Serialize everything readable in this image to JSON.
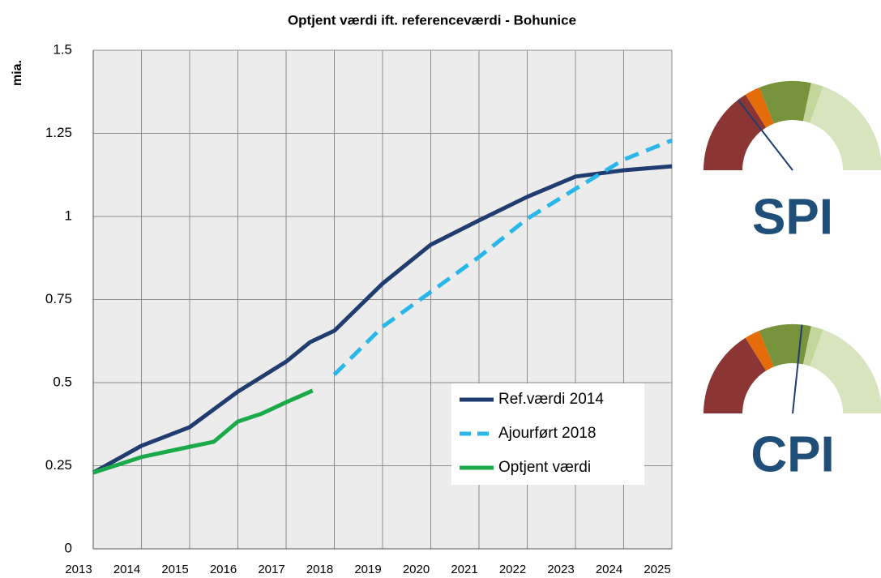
{
  "chart_data": {
    "type": "line",
    "title": "Optjent værdi ift. referenceværdi - Bohunice",
    "ylabel": "mia.",
    "xlim": [
      2013,
      2025
    ],
    "xticks": [
      2013,
      2014,
      2015,
      2016,
      2017,
      2018,
      2019,
      2020,
      2021,
      2022,
      2023,
      2024,
      2025
    ],
    "ylim": [
      0,
      1.5
    ],
    "yticks": [
      0,
      0.25,
      0.5,
      0.75,
      1,
      1.25,
      1.5
    ],
    "grid": true,
    "legend": "lower right",
    "series": [
      {
        "name": "Ref.værdi 2014",
        "color": "#1f3d6e",
        "dash": false,
        "x": [
          2013,
          2014,
          2015,
          2016,
          2017,
          2017.5,
          2018,
          2019,
          2020,
          2021,
          2022,
          2023,
          2024,
          2025
        ],
        "values": [
          0.229,
          0.31,
          0.366,
          0.473,
          0.563,
          0.622,
          0.656,
          0.798,
          0.915,
          0.988,
          1.059,
          1.12,
          1.139,
          1.151
        ]
      },
      {
        "name": "Ajourført 2018",
        "color": "#29b6e8",
        "dash": true,
        "x": [
          2018,
          2019,
          2020,
          2021,
          2022,
          2023,
          2024,
          2025
        ],
        "values": [
          0.524,
          0.668,
          0.773,
          0.878,
          0.993,
          1.083,
          1.171,
          1.229
        ]
      },
      {
        "name": "Optjent værdi",
        "color": "#1aaa4a",
        "dash": false,
        "x": [
          2013,
          2014,
          2015,
          2015.5,
          2016,
          2016.5,
          2017,
          2017.55
        ],
        "values": [
          0.229,
          0.276,
          0.307,
          0.322,
          0.383,
          0.407,
          0.441,
          0.476
        ]
      }
    ]
  },
  "gauges": [
    {
      "label": "SPI"
    },
    {
      "label": "CPI"
    }
  ]
}
